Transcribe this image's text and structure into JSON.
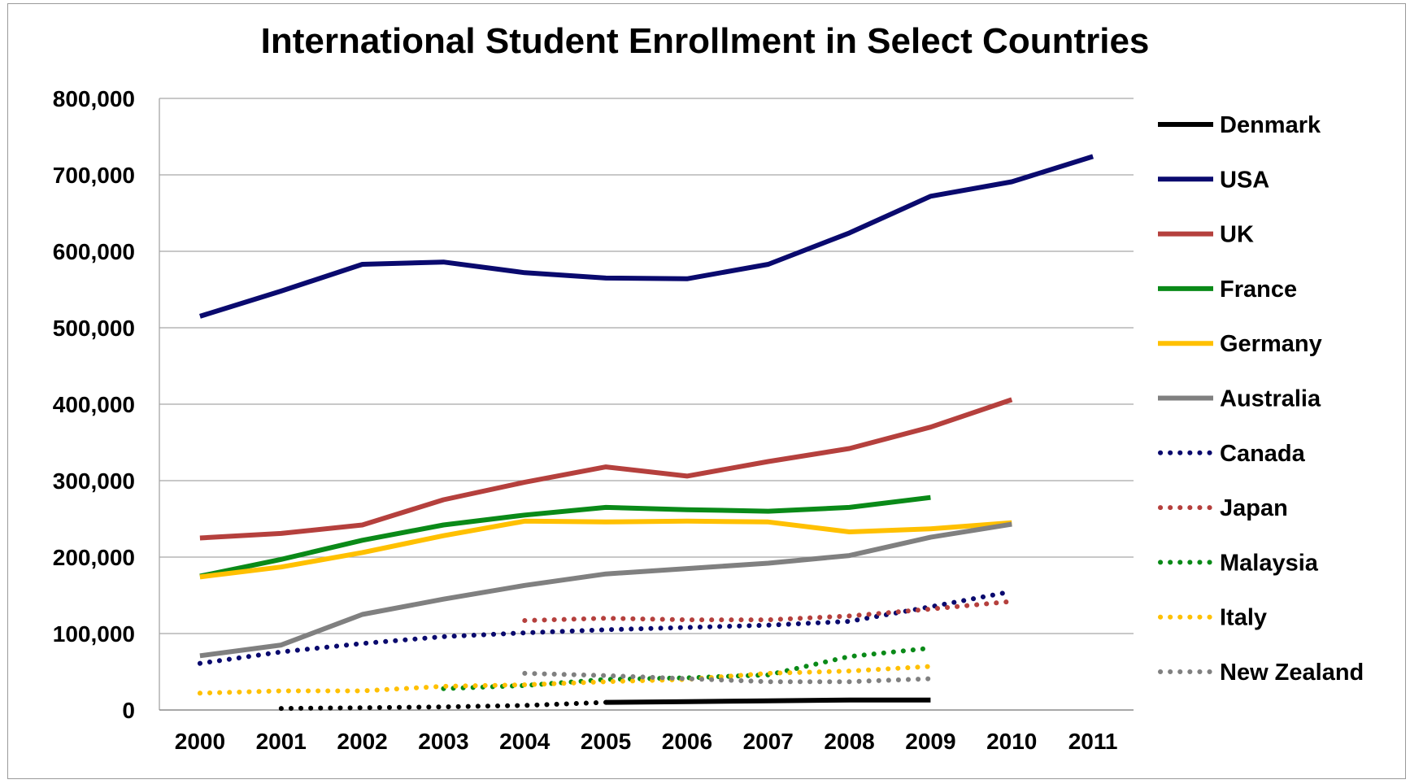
{
  "chart_data": {
    "type": "line",
    "title": "International Student Enrollment in Select Countries",
    "xlabel": "",
    "ylabel": "",
    "x": [
      "2000",
      "2001",
      "2002",
      "2003",
      "2004",
      "2005",
      "2006",
      "2007",
      "2008",
      "2009",
      "2010",
      "2011"
    ],
    "ylim": [
      0,
      800000
    ],
    "yticks": [
      0,
      100000,
      200000,
      300000,
      400000,
      500000,
      600000,
      700000,
      800000
    ],
    "ytick_labels": [
      "0",
      "100,000",
      "200,000",
      "300,000",
      "400,000",
      "500,000",
      "600,000",
      "700,000",
      "800,000"
    ],
    "grid": true,
    "legend_position": "right",
    "series": [
      {
        "name": "Denmark",
        "color": "#000000",
        "style": "solid",
        "values": [
          null,
          null,
          null,
          null,
          null,
          10000,
          11000,
          12000,
          13000,
          13000,
          null,
          null
        ]
      },
      {
        "name": "USA",
        "color": "#0a0a6e",
        "style": "solid",
        "values": [
          515000,
          548000,
          583000,
          586000,
          572000,
          565000,
          564000,
          583000,
          624000,
          672000,
          691000,
          724000
        ]
      },
      {
        "name": "UK",
        "color": "#b5403d",
        "style": "solid",
        "values": [
          225000,
          231000,
          242000,
          275000,
          298000,
          318000,
          306000,
          325000,
          342000,
          370000,
          406000,
          null
        ]
      },
      {
        "name": "France",
        "color": "#0a8a18",
        "style": "solid",
        "values": [
          175000,
          197000,
          222000,
          242000,
          255000,
          265000,
          262000,
          260000,
          265000,
          278000,
          null,
          null
        ]
      },
      {
        "name": "Germany",
        "color": "#ffc000",
        "style": "solid",
        "values": [
          174000,
          187000,
          206000,
          228000,
          247000,
          246000,
          247000,
          246000,
          233000,
          237000,
          245000,
          null
        ]
      },
      {
        "name": "Australia",
        "color": "#808080",
        "style": "solid",
        "values": [
          71000,
          85000,
          125000,
          145000,
          163000,
          178000,
          185000,
          192000,
          202000,
          226000,
          243000,
          null
        ]
      },
      {
        "name": "Canada",
        "color": "#0a0a6e",
        "style": "dotted",
        "values": [
          61000,
          76000,
          87000,
          96000,
          101000,
          105000,
          108000,
          111000,
          116000,
          135000,
          155000,
          null
        ]
      },
      {
        "name": "Japan",
        "color": "#b5403d",
        "style": "dotted",
        "values": [
          null,
          null,
          null,
          null,
          117000,
          120000,
          118000,
          118000,
          123000,
          132000,
          142000,
          null
        ]
      },
      {
        "name": "Malaysia",
        "color": "#0a8a18",
        "style": "dotted",
        "values": [
          null,
          null,
          null,
          28000,
          32000,
          40000,
          42000,
          46000,
          70000,
          81000,
          null,
          null
        ]
      },
      {
        "name": "Italy",
        "color": "#ffc000",
        "style": "dotted",
        "values": [
          22000,
          25000,
          25000,
          31000,
          33000,
          37000,
          40000,
          48000,
          51000,
          57000,
          null,
          null
        ]
      },
      {
        "name": "New Zealand",
        "color": "#808080",
        "style": "dotted",
        "values": [
          null,
          null,
          null,
          null,
          48000,
          45000,
          41000,
          37000,
          37000,
          41000,
          null,
          null
        ]
      },
      {
        "name": "Denmark",
        "color": "#000000",
        "style": "dotted",
        "values": [
          null,
          2000,
          3000,
          4000,
          6000,
          10000,
          null,
          null,
          null,
          null,
          null,
          null
        ]
      }
    ]
  }
}
